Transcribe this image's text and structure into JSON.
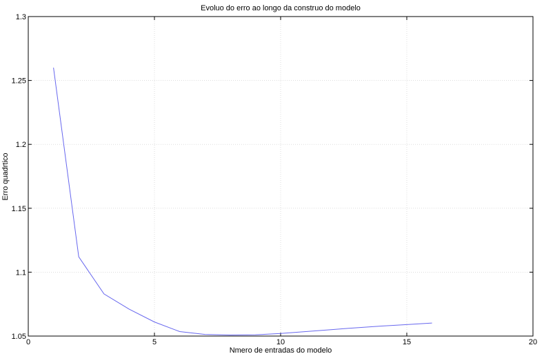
{
  "chart_data": {
    "type": "line",
    "title": "Evoluo do erro ao longo da construo do modelo",
    "xlabel": "Nmero de entradas do modelo",
    "ylabel": "Erro quadrtico",
    "xlim": [
      0,
      20
    ],
    "ylim": [
      1.05,
      1.3
    ],
    "xticks": [
      0,
      5,
      10,
      15,
      20
    ],
    "yticks": [
      1.05,
      1.1,
      1.15,
      1.2,
      1.25,
      1.3
    ],
    "xtick_labels": [
      "0",
      "5",
      "10",
      "15",
      "20"
    ],
    "ytick_labels": [
      "1.05",
      "1.1",
      "1.15",
      "1.2",
      "1.25",
      "1.3"
    ],
    "grid": true,
    "series": [
      {
        "color": "#6666ee",
        "x": [
          1,
          2,
          3,
          4,
          5,
          6,
          7,
          8,
          9,
          10,
          11,
          12,
          13,
          14,
          15,
          16
        ],
        "y": [
          1.26,
          1.112,
          1.083,
          1.071,
          1.061,
          1.0535,
          1.0513,
          1.0508,
          1.051,
          1.052,
          1.0535,
          1.055,
          1.0565,
          1.0578,
          1.059,
          1.0602
        ]
      }
    ]
  }
}
